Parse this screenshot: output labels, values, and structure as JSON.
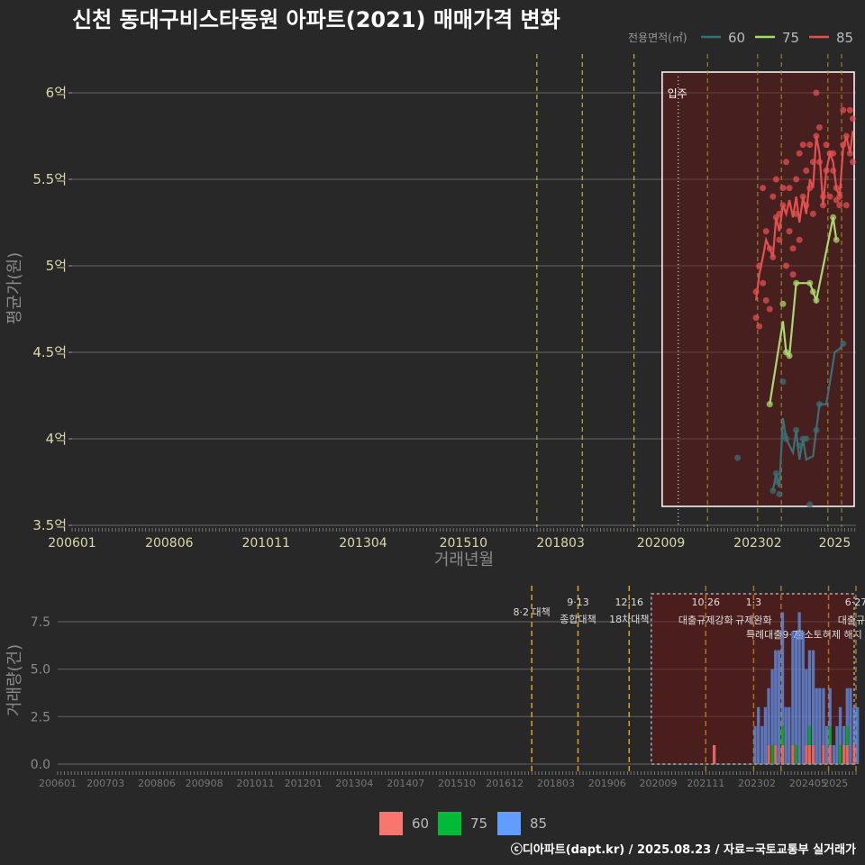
{
  "chart_data": [
    {
      "type": "line",
      "title": "신천 동대구비스타동원 아파트(2021) 매매가격 변화",
      "xlabel": "거래년월",
      "ylabel": "평균가(원)",
      "ylim": [
        3.5,
        6.25
      ],
      "x_tick_labels": [
        "200601",
        "200806",
        "201011",
        "201304",
        "201510",
        "201803",
        "202009",
        "202302",
        "2025"
      ],
      "y_tick_values": [
        3.5,
        4,
        4.5,
        5,
        5.5,
        6
      ],
      "y_tick_labels": [
        "3.5억",
        "4억",
        "4.5억",
        "5억",
        "5.5억",
        "6억"
      ],
      "legend_title": "전용면적(㎡)",
      "legend_position": "top-right",
      "highlight_label": "입주",
      "policy_lines_yearfrac": [
        2017.58,
        2018.71,
        2020.0,
        2021.83,
        2023.08,
        2023.67,
        2024.83,
        2025.17
      ],
      "move_in_yearfrac": 2021.1,
      "highlight_range_yearfrac": [
        2020.7,
        2025.45
      ],
      "series": [
        {
          "name": "60",
          "color": "#3a6f74",
          "x": [
            2023.46,
            2023.54,
            2023.62,
            2023.71,
            2023.79,
            2023.96,
            2024.04,
            2024.12,
            2024.21,
            2024.29,
            2024.46,
            2024.54,
            2024.62,
            2024.79,
            2025.0,
            2025.12,
            2025.21
          ],
          "y": [
            3.7,
            3.8,
            3.72,
            4.12,
            4.0,
            3.92,
            4.05,
            3.88,
            4.0,
            3.88,
            3.9,
            4.05,
            4.2,
            4.2,
            4.5,
            4.52,
            4.55
          ],
          "points_x": [
            2022.58,
            2023.46,
            2023.54,
            2023.58,
            2023.62,
            2023.71,
            2023.75,
            2023.79,
            2024.04,
            2024.12,
            2024.21,
            2024.29,
            2024.38,
            2024.54,
            2024.62,
            2025.21
          ],
          "points_y": [
            3.89,
            3.7,
            3.8,
            3.75,
            3.68,
            4.33,
            4.02,
            4.0,
            4.05,
            3.96,
            4.0,
            4.0,
            3.62,
            4.05,
            4.2,
            4.55
          ]
        },
        {
          "name": "75",
          "color": "#a8d86e",
          "x": [
            2023.38,
            2023.71,
            2023.79,
            2023.87,
            2024.04,
            2024.38,
            2024.46,
            2024.54,
            2024.96,
            2025.04
          ],
          "y": [
            4.2,
            4.68,
            4.5,
            4.48,
            4.9,
            4.9,
            4.85,
            4.8,
            5.28,
            5.15
          ],
          "points_x": [
            2023.38,
            2023.71,
            2023.79,
            2023.87,
            2024.04,
            2024.38,
            2024.46,
            2024.54,
            2024.96,
            2025.04
          ],
          "points_y": [
            4.2,
            4.78,
            4.5,
            4.48,
            4.9,
            4.9,
            4.85,
            4.8,
            5.28,
            5.15
          ]
        },
        {
          "name": "85",
          "color": "#e15050",
          "x": [
            2023.04,
            2023.12,
            2023.21,
            2023.29,
            2023.38,
            2023.46,
            2023.54,
            2023.62,
            2023.71,
            2023.79,
            2023.87,
            2023.96,
            2024.04,
            2024.12,
            2024.21,
            2024.29,
            2024.38,
            2024.46,
            2024.54,
            2024.62,
            2024.71,
            2024.79,
            2024.88,
            2024.96,
            2025.04,
            2025.12,
            2025.21,
            2025.29,
            2025.38,
            2025.45
          ],
          "y": [
            4.8,
            4.95,
            5.05,
            5.15,
            5.1,
            5.05,
            5.28,
            5.2,
            5.35,
            5.3,
            5.38,
            5.28,
            5.4,
            5.25,
            5.4,
            5.3,
            5.5,
            5.45,
            5.75,
            5.65,
            5.35,
            5.55,
            5.65,
            5.6,
            5.45,
            5.4,
            5.68,
            5.75,
            5.65,
            5.78
          ],
          "points_x": [
            2023.04,
            2023.04,
            2023.12,
            2023.12,
            2023.21,
            2023.21,
            2023.29,
            2023.29,
            2023.38,
            2023.38,
            2023.46,
            2023.46,
            2023.54,
            2023.54,
            2023.62,
            2023.62,
            2023.71,
            2023.71,
            2023.79,
            2023.79,
            2023.87,
            2023.87,
            2023.96,
            2023.96,
            2024.04,
            2024.04,
            2024.12,
            2024.12,
            2024.21,
            2024.21,
            2024.29,
            2024.29,
            2024.38,
            2024.38,
            2024.46,
            2024.46,
            2024.54,
            2024.54,
            2024.62,
            2024.62,
            2024.71,
            2024.71,
            2024.79,
            2024.79,
            2024.88,
            2024.88,
            2024.96,
            2024.96,
            2025.04,
            2025.04,
            2025.12,
            2025.12,
            2025.21,
            2025.21,
            2025.29,
            2025.29,
            2025.38,
            2025.38,
            2025.45,
            2025.45
          ],
          "points_y": [
            4.7,
            4.85,
            4.65,
            5.0,
            5.45,
            4.9,
            5.2,
            4.8,
            4.75,
            5.1,
            5.05,
            5.4,
            5.28,
            5.5,
            5.15,
            5.3,
            5.35,
            5.45,
            5.0,
            5.6,
            5.45,
            5.2,
            5.1,
            4.95,
            5.3,
            5.5,
            5.15,
            5.65,
            5.4,
            5.7,
            5.35,
            5.55,
            5.45,
            5.7,
            5.6,
            5.3,
            6.0,
            5.75,
            5.8,
            5.6,
            5.4,
            5.35,
            5.55,
            5.7,
            5.65,
            5.4,
            5.65,
            5.55,
            5.45,
            5.38,
            5.4,
            5.35,
            5.9,
            5.7,
            5.75,
            5.35,
            5.65,
            5.9,
            5.85,
            5.6
          ]
        }
      ]
    },
    {
      "type": "bar",
      "xlabel": "",
      "ylabel": "거래량(건)",
      "ylim": [
        0,
        9
      ],
      "y_tick_values": [
        0,
        2.5,
        5,
        7.5
      ],
      "y_tick_labels": [
        "0.0",
        "2.5",
        "5.0",
        "7.5"
      ],
      "x_tick_labels": [
        "200601",
        "200703",
        "200806",
        "200908",
        "201011",
        "201201",
        "201304",
        "201407",
        "201510",
        "201612",
        "201803",
        "201906",
        "202009",
        "202111",
        "202302",
        "202405",
        "2025"
      ],
      "policies": [
        {
          "yearfrac": 2017.58,
          "date": "8·2",
          "label": "대책"
        },
        {
          "yearfrac": 2018.71,
          "date": "9·13",
          "label": "종합대책"
        },
        {
          "yearfrac": 2019.96,
          "date": "12·16",
          "label": "18차대책"
        },
        {
          "yearfrac": 2021.83,
          "date": "10·26",
          "label": "대출규제강화"
        },
        {
          "yearfrac": 2023.0,
          "date": "1·3",
          "label": "규제완화"
        },
        {
          "yearfrac": 2023.67,
          "date": "9·7",
          "label": "특례대출"
        },
        {
          "yearfrac": 2024.83,
          "date": "",
          "label": "출소토허제 해지"
        },
        {
          "yearfrac": 2025.5,
          "date": "6·27",
          "label": "대출규제"
        }
      ],
      "highlight_range_yearfrac": [
        2020.5,
        2025.45
      ],
      "legend": [
        "60",
        "75",
        "85"
      ],
      "legend_colors": [
        "#f8766d",
        "#00ba38",
        "#619cff"
      ],
      "months_yearfrac": [
        2022.0,
        2022.75,
        2022.83,
        2022.92,
        2023.0,
        2023.08,
        2023.17,
        2023.25,
        2023.33,
        2023.42,
        2023.5,
        2023.58,
        2023.67,
        2023.75,
        2023.83,
        2023.92,
        2024.0,
        2024.08,
        2024.17,
        2024.25,
        2024.33,
        2024.42,
        2024.5,
        2024.58,
        2024.67,
        2024.75,
        2024.83,
        2024.92,
        2025.0,
        2025.08,
        2025.17,
        2025.25,
        2025.33,
        2025.42,
        2025.5
      ],
      "series": [
        {
          "name": "60",
          "values": [
            1,
            0,
            0,
            0,
            0,
            0,
            0,
            0,
            1,
            0,
            1,
            0,
            1,
            0,
            0,
            1,
            0,
            0,
            0,
            1,
            1,
            1,
            0,
            0,
            1,
            0,
            1,
            0,
            0,
            0,
            1,
            1,
            0,
            1,
            0
          ]
        },
        {
          "name": "75",
          "values": [
            0,
            0,
            0,
            0,
            0,
            0,
            0,
            0,
            0,
            1,
            0,
            0,
            1,
            0,
            0,
            0,
            1,
            0,
            0,
            0,
            1,
            0,
            0,
            0,
            0,
            0,
            1,
            0,
            0,
            1,
            0,
            1,
            0,
            0,
            0
          ]
        },
        {
          "name": "85",
          "values": [
            0,
            0,
            0,
            0,
            2,
            3,
            2,
            3,
            3,
            4,
            5,
            6,
            6,
            3,
            3,
            6,
            6,
            8,
            7,
            4,
            4,
            5,
            4,
            4,
            3,
            2,
            2,
            1,
            2,
            2,
            1,
            2,
            4,
            2,
            3
          ]
        }
      ]
    }
  ],
  "footer": "ⓒ디아파트(dapt.kr) / 2025.08.23 / 자료=국토교통부 실거래가"
}
